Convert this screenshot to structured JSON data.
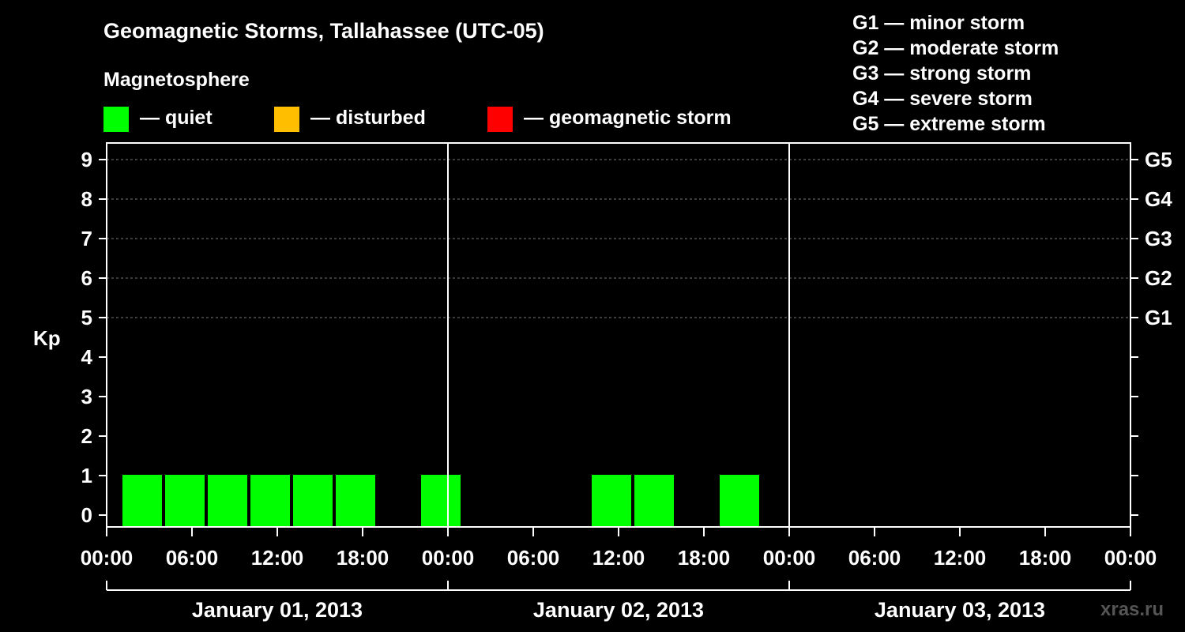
{
  "chart_data": {
    "type": "bar",
    "title": "Geomagnetic Storms, Tallahassee (UTC-05)",
    "ylabel": "Kp",
    "ylim": [
      0,
      9
    ],
    "yticks": [
      "0",
      "1",
      "2",
      "3",
      "4",
      "5",
      "6",
      "7",
      "8",
      "9"
    ],
    "right_axis": [
      {
        "kp": 5,
        "label": "G1"
      },
      {
        "kp": 6,
        "label": "G2"
      },
      {
        "kp": 7,
        "label": "G3"
      },
      {
        "kp": 8,
        "label": "G4"
      },
      {
        "kp": 9,
        "label": "G5"
      }
    ],
    "xlim_hours": [
      0,
      72
    ],
    "xtick_labels": [
      "00:00",
      "06:00",
      "12:00",
      "18:00",
      "00:00",
      "06:00",
      "12:00",
      "18:00",
      "00:00",
      "06:00",
      "12:00",
      "18:00",
      "00:00"
    ],
    "days": [
      "January 01, 2013",
      "January 02, 2013",
      "January 03, 2013"
    ],
    "bars": [
      {
        "start_hour": 1,
        "kp": 1,
        "status": "quiet"
      },
      {
        "start_hour": 4,
        "kp": 1,
        "status": "quiet"
      },
      {
        "start_hour": 7,
        "kp": 1,
        "status": "quiet"
      },
      {
        "start_hour": 10,
        "kp": 1,
        "status": "quiet"
      },
      {
        "start_hour": 13,
        "kp": 1,
        "status": "quiet"
      },
      {
        "start_hour": 16,
        "kp": 1,
        "status": "quiet"
      },
      {
        "start_hour": 22,
        "kp": 1,
        "status": "quiet"
      },
      {
        "start_hour": 34,
        "kp": 1,
        "status": "quiet"
      },
      {
        "start_hour": 37,
        "kp": 1,
        "status": "quiet"
      },
      {
        "start_hour": 43,
        "kp": 1,
        "status": "quiet"
      }
    ],
    "bar_duration_hours": 3
  },
  "legend": {
    "heading": "Magnetosphere",
    "items": [
      {
        "key": "quiet",
        "label": "— quiet",
        "color": "#00ff00"
      },
      {
        "key": "disturbed",
        "label": "— disturbed",
        "color": "#ffbf00"
      },
      {
        "key": "storm",
        "label": "— geomagnetic storm",
        "color": "#ff0000"
      }
    ],
    "scale": [
      "G1 — minor storm",
      "G2 — moderate storm",
      "G3 — strong storm",
      "G4 — severe storm",
      "G5 — extreme storm"
    ]
  },
  "credit": "xras.ru",
  "colors": {
    "grid": "#777777",
    "axis": "#ffffff",
    "background": "#000000"
  }
}
